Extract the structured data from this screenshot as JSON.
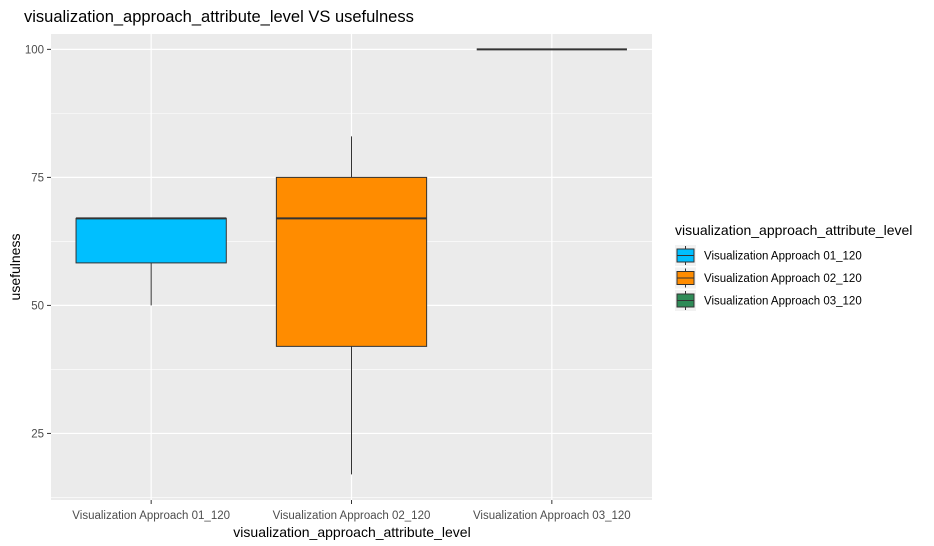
{
  "chart_data": {
    "type": "box",
    "title": "visualization_approach_attribute_level VS usefulness",
    "xlabel": "visualization_approach_attribute_level",
    "ylabel": "usefulness",
    "ylim": [
      12,
      103
    ],
    "yticks": [
      25,
      50,
      75,
      100
    ],
    "grid": true,
    "legend_title": "visualization_approach_attribute_level",
    "legend_position": "right",
    "categories": [
      "Visualization Approach 01_120",
      "Visualization Approach 02_120",
      "Visualization Approach 03_120"
    ],
    "boxes": [
      {
        "category": "Visualization Approach 01_120",
        "min": 50,
        "q1": 58.3,
        "median": 67,
        "q3": 67,
        "max": 67,
        "color": "#00BFFF"
      },
      {
        "category": "Visualization Approach 02_120",
        "min": 17,
        "q1": 42,
        "median": 67,
        "q3": 75,
        "max": 83,
        "color": "#FF8C00"
      },
      {
        "category": "Visualization Approach 03_120",
        "min": 100,
        "q1": 100,
        "median": 100,
        "q3": 100,
        "max": 100,
        "color": "#2E8B57"
      }
    ]
  }
}
